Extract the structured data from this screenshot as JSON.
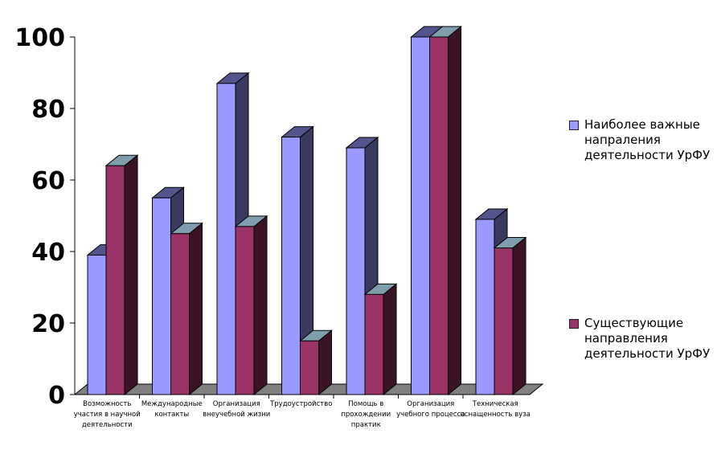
{
  "chart_data": {
    "type": "bar",
    "title": "",
    "xlabel": "",
    "ylabel": "",
    "ylim": [
      0,
      100
    ],
    "yticks": [
      0,
      20,
      40,
      60,
      80,
      100
    ],
    "categories": [
      "Возможность участия в научной деятельности",
      "Международные контакты",
      "Организация внеучебной жизни",
      "Трудоустройство",
      "Помощь в прохождении практик",
      "Организация учебного процесса",
      "Техническая оснащенность вуза"
    ],
    "category_lines": [
      [
        "Возможность",
        "участия в научной",
        "деятельности"
      ],
      [
        "Международные",
        "контакты"
      ],
      [
        "Организация",
        "внеучебной жизни"
      ],
      [
        "Трудоустройство"
      ],
      [
        "Помощь в",
        "прохождении",
        "практик"
      ],
      [
        "Организация",
        "учебного процесса"
      ],
      [
        "Техническая",
        "оснащенность вуза"
      ]
    ],
    "series": [
      {
        "name": "Наиболее важные напраления деятельности УрФУ",
        "values": [
          39,
          55,
          87,
          72,
          69,
          100,
          49
        ],
        "color": "#9999ff"
      },
      {
        "name": "Существующие направления деятельности УрФУ",
        "values": [
          64,
          45,
          47,
          15,
          28,
          100,
          41
        ],
        "color": "#993366"
      }
    ],
    "legend_position": "right",
    "grid": false,
    "style": "3d"
  }
}
